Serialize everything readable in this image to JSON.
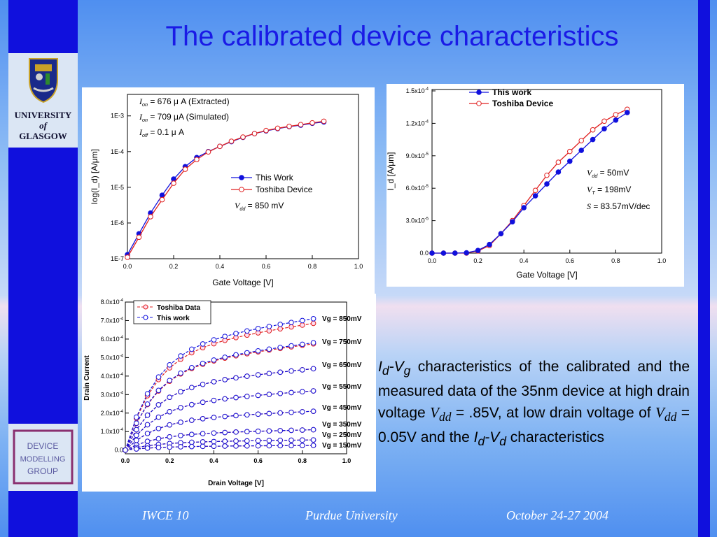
{
  "slide": {
    "title": "The calibrated device characteristics",
    "university": [
      "UNIVERSITY",
      "of",
      "GLASGOW"
    ],
    "footer": {
      "left": "IWCE 10",
      "center": "Purdue University",
      "right": "October 24-27 2004"
    },
    "caption": {
      "p1a": "I",
      "p1b": "d",
      "p1c": "-V",
      "p1d": "g",
      "p1e": " characteristics of the calibrated and the measured data of the 35nm device at high drain voltage ",
      "vdd1": "V",
      "vdd1s": "dd",
      "p2": " = .85V, at low drain voltage of ",
      "vdd2": "V",
      "vdd2s": "dd",
      "p3": " = 0.05V and the ",
      "p4a": "I",
      "p4b": "d",
      "p4c": "-V",
      "p4d": "d",
      "p5": " characteristics"
    },
    "logo_text": [
      "DEVICE",
      "MODELLING",
      "GROUP"
    ],
    "colors": {
      "accent": "#1a1ae6",
      "sidebar": "#1010dd",
      "this_work": "#1010dd",
      "toshiba": "#e02020"
    }
  },
  "chart_data": [
    {
      "type": "line",
      "title": "",
      "xlabel": "Gate Voltage [V]",
      "ylabel": "log(I_d) [A/μm]",
      "xlim": [
        0.0,
        1.0
      ],
      "ylim": [
        1e-07,
        0.004
      ],
      "log_y": true,
      "xticks": [
        "0.0",
        "0.2",
        "0.4",
        "0.6",
        "0.8",
        "1.0"
      ],
      "yticks": [
        "1E-7",
        "1E-6",
        "1E-5",
        "1E-4",
        "1E-3"
      ],
      "legend_position": "center-right",
      "annotations": [
        {
          "sym": "I",
          "sub": "on",
          "text": " = 676 μ A  (Extracted)"
        },
        {
          "sym": "I",
          "sub": "on",
          "text": " = 709 μA  (Simulated)"
        },
        {
          "sym": "I",
          "sub": "off",
          "text": " = 0.1 μ A"
        }
      ],
      "legend_note": {
        "sym": "V",
        "sub": "dd",
        "text": " = 850 mV"
      },
      "series": [
        {
          "name": "This Work",
          "x": [
            0.0,
            0.05,
            0.1,
            0.15,
            0.2,
            0.25,
            0.3,
            0.35,
            0.4,
            0.45,
            0.5,
            0.55,
            0.6,
            0.65,
            0.7,
            0.75,
            0.8,
            0.85
          ],
          "y": [
            1.3e-07,
            5e-07,
            1.9e-06,
            6e-06,
            1.7e-05,
            3.8e-05,
            6.8e-05,
            0.0001,
            0.00014,
            0.00019,
            0.00025,
            0.00032,
            0.00038,
            0.00044,
            0.0005,
            0.00055,
            0.00062,
            0.000676
          ]
        },
        {
          "name": "Toshiba Device",
          "x": [
            0.0,
            0.05,
            0.1,
            0.15,
            0.2,
            0.25,
            0.3,
            0.35,
            0.4,
            0.45,
            0.5,
            0.55,
            0.6,
            0.65,
            0.7,
            0.75,
            0.8,
            0.85
          ],
          "y": [
            1.1e-07,
            4e-07,
            1.5e-06,
            4.5e-06,
            1.3e-05,
            3.2e-05,
            6e-05,
            9.8e-05,
            0.00014,
            0.000195,
            0.000255,
            0.00032,
            0.00039,
            0.00045,
            0.00051,
            0.00057,
            0.00064,
            0.000709
          ]
        }
      ]
    },
    {
      "type": "line",
      "title": "",
      "xlabel": "Gate Voltage [V]",
      "ylabel": "I_d [A/μm]",
      "xlim": [
        0.0,
        1.0
      ],
      "ylim": [
        0,
        0.00015
      ],
      "xticks": [
        "0.0",
        "0.2",
        "0.4",
        "0.6",
        "0.8",
        "1.0"
      ],
      "yticks": [
        {
          "m": "0.0",
          "e": ""
        },
        {
          "m": "3.0x10",
          "e": "-5"
        },
        {
          "m": "6.0x10",
          "e": "-5"
        },
        {
          "m": "9.0x10",
          "e": "-5"
        },
        {
          "m": "1.2x10",
          "e": "-4"
        },
        {
          "m": "1.5x10",
          "e": "-4"
        }
      ],
      "legend_position": "top-left",
      "annotations": [
        {
          "sym": "V",
          "sub": "dd",
          "text": " =  50mV"
        },
        {
          "sym": "V",
          "sub": "T",
          "text": " = 198mV"
        },
        {
          "sym": "S",
          "sub": "",
          "text": "   = 83.57mV/dec"
        }
      ],
      "series": [
        {
          "name": "This work",
          "x": [
            0.0,
            0.05,
            0.1,
            0.15,
            0.2,
            0.25,
            0.3,
            0.35,
            0.4,
            0.45,
            0.5,
            0.55,
            0.6,
            0.65,
            0.7,
            0.75,
            0.8,
            0.85
          ],
          "y": [
            0,
            0,
            0,
            3e-07,
            2.5e-06,
            8e-06,
            1.8e-05,
            2.9e-05,
            4.2e-05,
            5.3e-05,
            6.4e-05,
            7.5e-05,
            8.5e-05,
            9.5e-05,
            0.000105,
            0.000115,
            0.000123,
            0.00013
          ]
        },
        {
          "name": "Toshiba Device",
          "x": [
            0.0,
            0.05,
            0.1,
            0.15,
            0.2,
            0.25,
            0.3,
            0.35,
            0.4,
            0.45,
            0.5,
            0.55,
            0.6,
            0.65,
            0.7,
            0.75,
            0.8,
            0.85
          ],
          "y": [
            0,
            0,
            0,
            0,
            2e-06,
            7e-06,
            1.8e-05,
            3e-05,
            4.4e-05,
            5.8e-05,
            7.2e-05,
            8.4e-05,
            9.4e-05,
            0.000104,
            0.000114,
            0.000122,
            0.000128,
            0.000133
          ]
        }
      ]
    },
    {
      "type": "line",
      "title": "",
      "xlabel": "Drain Voltage [V]",
      "ylabel": "Drain Current",
      "xlim": [
        0.0,
        1.0
      ],
      "ylim": [
        -2e-05,
        0.0008
      ],
      "xticks": [
        "0.0",
        "0.2",
        "0.4",
        "0.6",
        "0.8",
        "1.0"
      ],
      "yticks": [
        {
          "m": "0.0",
          "e": ""
        },
        {
          "m": "1.0x10",
          "e": "-4"
        },
        {
          "m": "2.0x10",
          "e": "-4"
        },
        {
          "m": "3.0x10",
          "e": "-4"
        },
        {
          "m": "4.0x10",
          "e": "-4"
        },
        {
          "m": "5.0x10",
          "e": "-4"
        },
        {
          "m": "6.0x10",
          "e": "-4"
        },
        {
          "m": "7.0x10",
          "e": "-4"
        },
        {
          "m": "8.0x10",
          "e": "-4"
        }
      ],
      "legend_position": "top-left",
      "legend": [
        "Toshiba Data",
        "This work"
      ],
      "x": [
        0.0,
        0.05,
        0.1,
        0.15,
        0.2,
        0.25,
        0.3,
        0.35,
        0.4,
        0.45,
        0.5,
        0.55,
        0.6,
        0.65,
        0.7,
        0.75,
        0.8,
        0.85
      ],
      "curves": [
        {
          "name": "Vg = 850mV",
          "sat": 0.00071,
          "toshiba_scale": 0.965
        },
        {
          "name": "Vg = 750mV",
          "sat": 0.00058,
          "toshiba_scale": 0.99
        },
        {
          "name": "Vg = 650mV",
          "sat": 0.00044,
          "toshiba_scale": 1.0
        },
        {
          "name": "Vg = 550mV",
          "sat": 0.00032,
          "toshiba_scale": 1.0
        },
        {
          "name": "Vg = 450mV",
          "sat": 0.00021,
          "toshiba_scale": 1.0
        },
        {
          "name": "Vg = 350mV",
          "sat": 0.00011,
          "toshiba_scale": 1.0
        },
        {
          "name": "Vg = 250mV",
          "sat": 5.5e-05,
          "toshiba_scale": 1.0
        },
        {
          "name": "Vg = 150mV",
          "sat": 2.5e-05,
          "toshiba_scale": 1.0
        }
      ]
    }
  ]
}
